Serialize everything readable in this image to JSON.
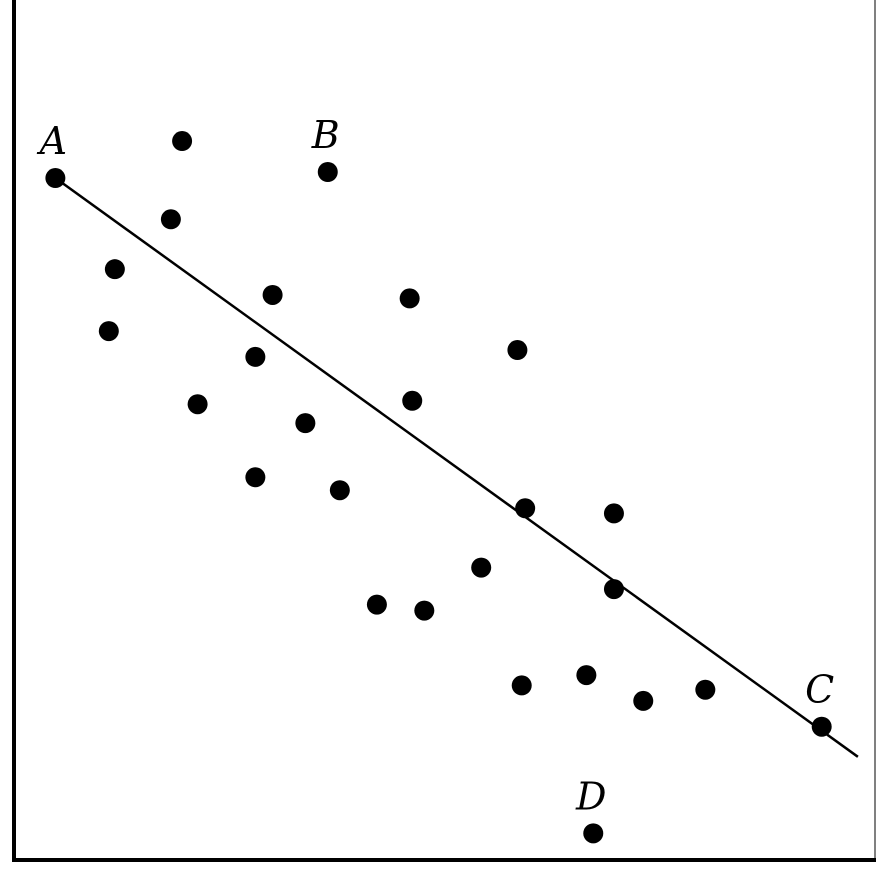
{
  "chart_data": {
    "type": "scatter",
    "title": "",
    "xlabel": "",
    "ylabel": "",
    "xlim": [
      0,
      100
    ],
    "ylim": [
      0,
      100
    ],
    "grid": false,
    "point_color": "#000000",
    "points": [
      {
        "x": 4.8,
        "y": 79.3,
        "label": "A"
      },
      {
        "x": 19.5,
        "y": 83.6
      },
      {
        "x": 36.4,
        "y": 80.0,
        "label": "B"
      },
      {
        "x": 18.2,
        "y": 74.5
      },
      {
        "x": 11.7,
        "y": 68.7
      },
      {
        "x": 30.0,
        "y": 65.7
      },
      {
        "x": 45.9,
        "y": 65.3
      },
      {
        "x": 11.0,
        "y": 61.5
      },
      {
        "x": 28.0,
        "y": 58.5
      },
      {
        "x": 58.4,
        "y": 59.3
      },
      {
        "x": 21.3,
        "y": 53.0
      },
      {
        "x": 46.2,
        "y": 53.4
      },
      {
        "x": 33.8,
        "y": 50.8
      },
      {
        "x": 28.0,
        "y": 44.5
      },
      {
        "x": 37.8,
        "y": 43.0
      },
      {
        "x": 59.3,
        "y": 40.9
      },
      {
        "x": 69.6,
        "y": 40.3
      },
      {
        "x": 54.2,
        "y": 34.0
      },
      {
        "x": 69.6,
        "y": 31.5
      },
      {
        "x": 42.1,
        "y": 29.7
      },
      {
        "x": 47.6,
        "y": 29.0
      },
      {
        "x": 58.9,
        "y": 20.3
      },
      {
        "x": 66.4,
        "y": 21.5
      },
      {
        "x": 73.0,
        "y": 18.5
      },
      {
        "x": 80.2,
        "y": 19.8
      },
      {
        "x": 93.7,
        "y": 15.5,
        "label": "C"
      },
      {
        "x": 67.2,
        "y": 3.1,
        "label": "D"
      }
    ],
    "line": {
      "x": [
        4.8,
        97.9
      ],
      "y": [
        79.3,
        12.0
      ],
      "color": "#000000"
    }
  }
}
